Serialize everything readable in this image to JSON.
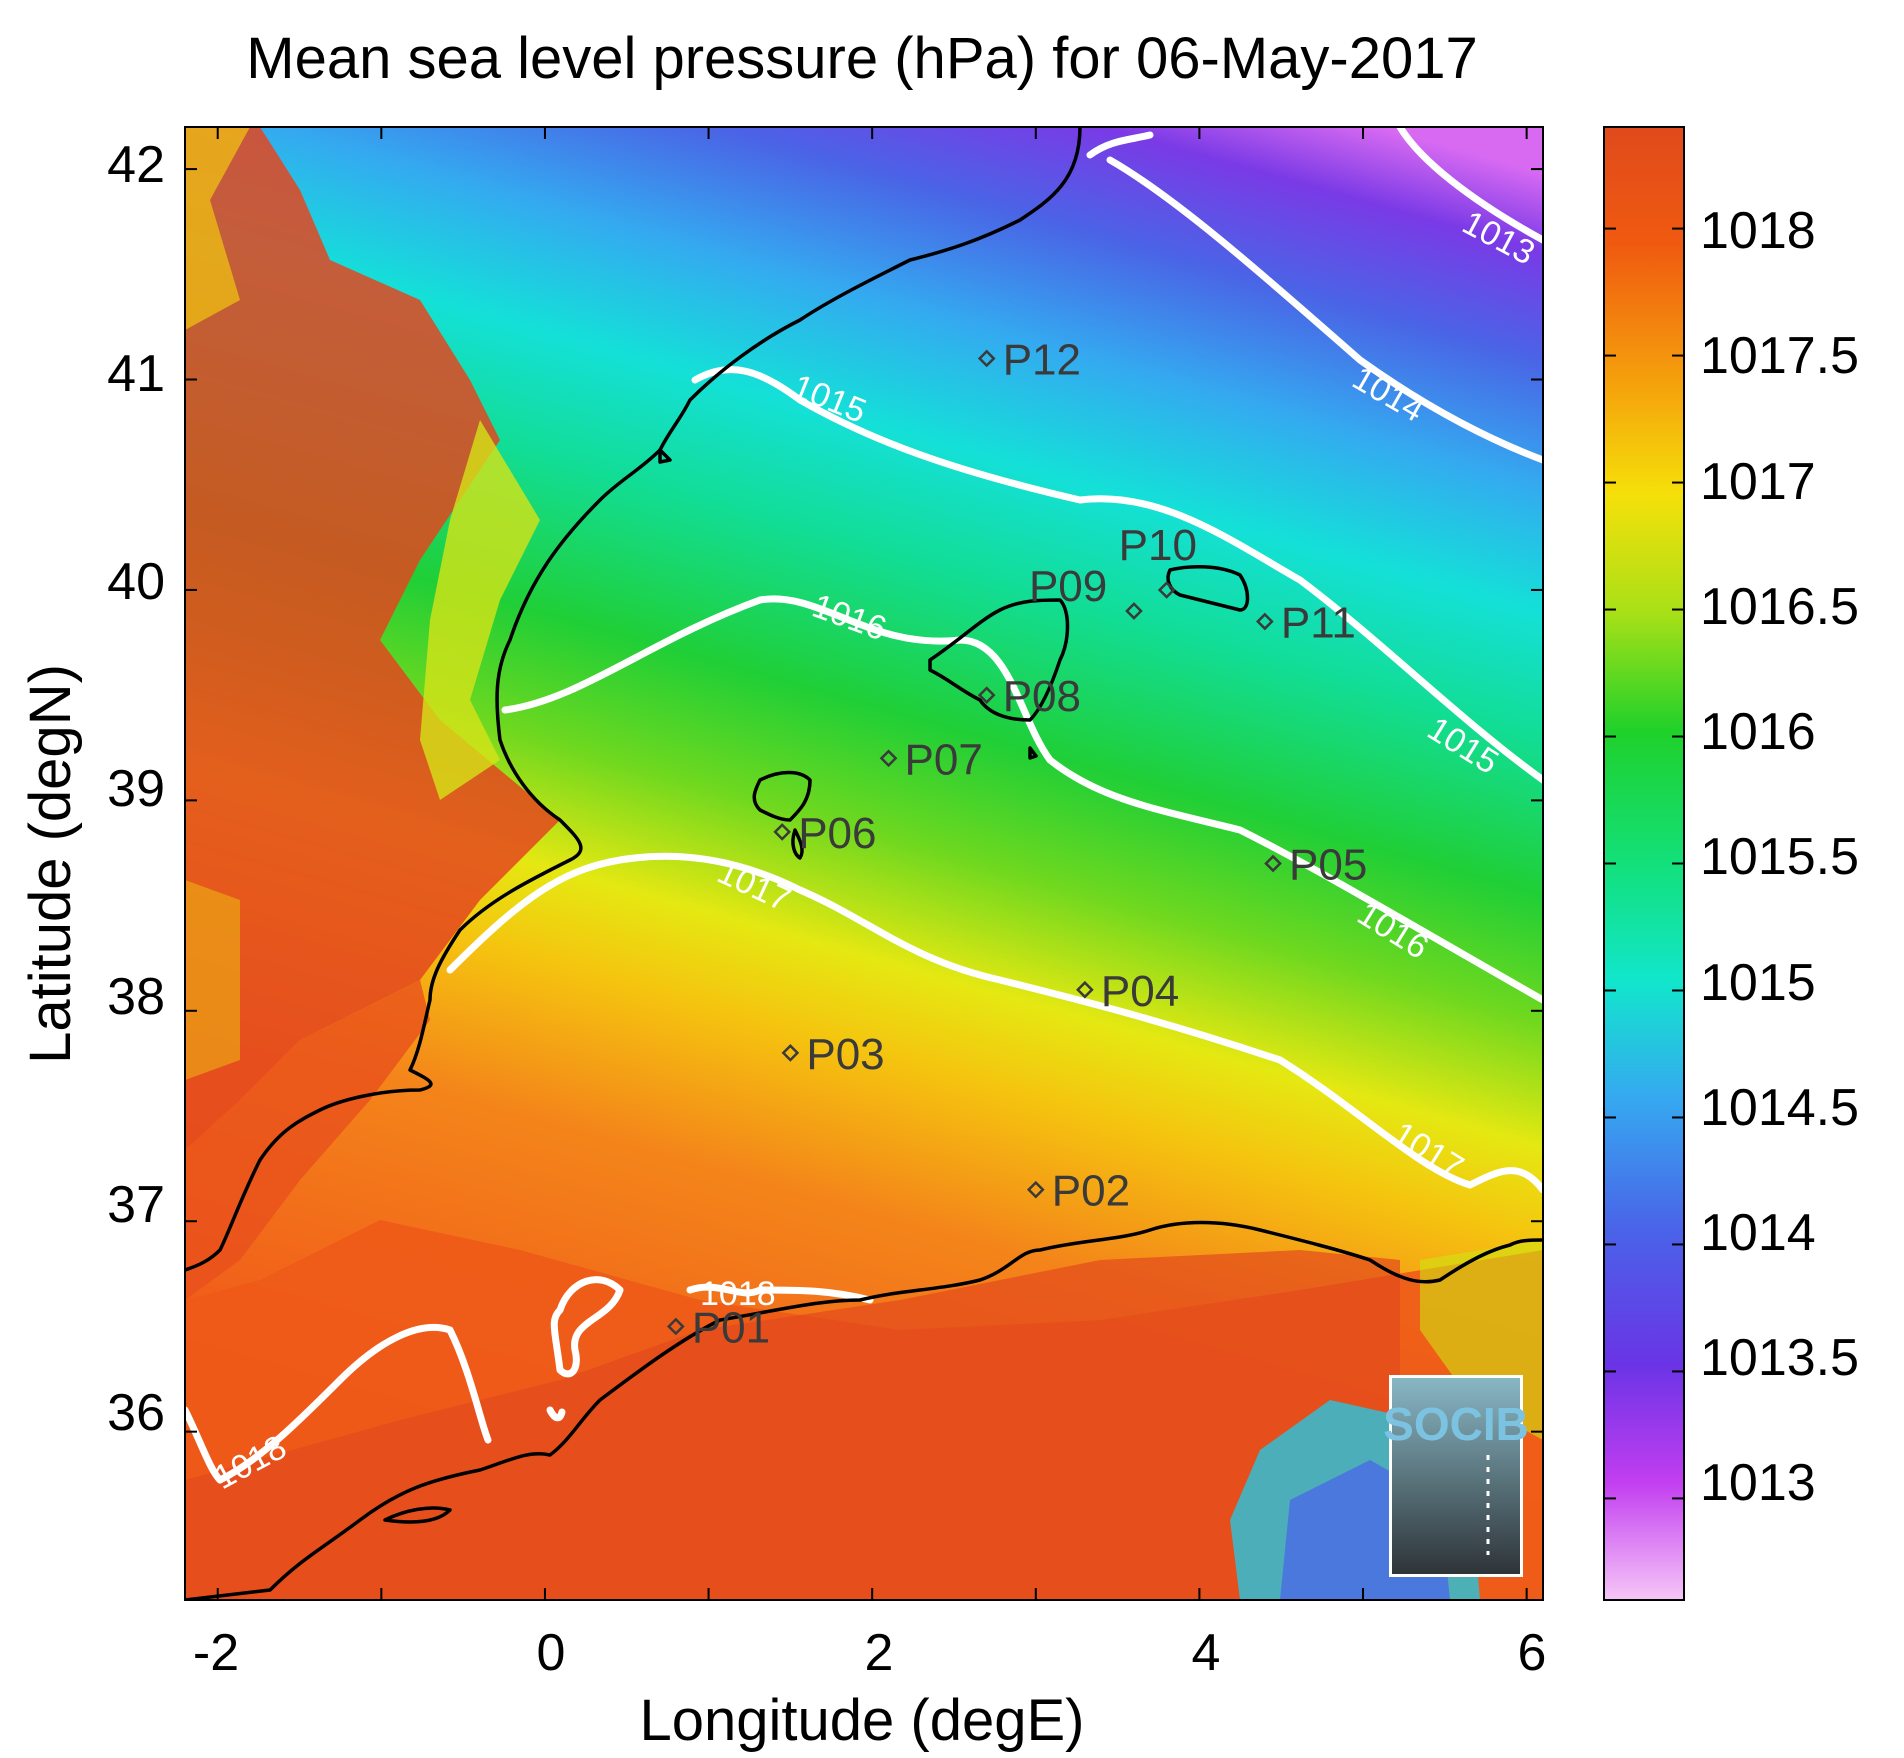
{
  "title": "Mean sea level pressure (hPa) for 06-May-2017",
  "xlabel": "Longitude (degE)",
  "ylabel": "Latitude (degN)",
  "xticks": [
    "-2",
    "0",
    "2",
    "4",
    "6"
  ],
  "yticks": [
    "42",
    "41",
    "40",
    "39",
    "38",
    "37",
    "36"
  ],
  "colorbar": {
    "ticks": [
      "1018",
      "1017.5",
      "1017",
      "1016.5",
      "1016",
      "1015.5",
      "1015",
      "1014.5",
      "1014",
      "1013.5",
      "1013"
    ],
    "colors": {
      "high": "#e04a1c",
      "mid_high": "#f5d80a",
      "mid": "#1dd32a",
      "mid_low": "#11e6cc",
      "low": "#5a2ce0",
      "lowest": "#f0b0f5"
    }
  },
  "contour_labels": [
    "1013",
    "1014",
    "1015",
    "1015",
    "1016",
    "1016",
    "1017",
    "1017",
    "1018",
    "1018"
  ],
  "points": [
    "P01",
    "P02",
    "P03",
    "P04",
    "P05",
    "P06",
    "P07",
    "P08",
    "P09",
    "P10",
    "P11",
    "P12"
  ],
  "logo": {
    "text": "SOCIB",
    "icon": "socib-logo-icon"
  },
  "chart_data": {
    "type": "heatmap",
    "title": "Mean sea level pressure (hPa) for 06-May-2017",
    "xlabel": "Longitude (degE)",
    "ylabel": "Latitude (degN)",
    "xlim": [
      -2.2,
      6.1
    ],
    "ylim": [
      35.2,
      42.2
    ],
    "colorbar_range": [
      1012.6,
      1018.4
    ],
    "contour_levels": [
      1013,
      1014,
      1015,
      1016,
      1017,
      1018
    ],
    "stations": [
      {
        "name": "P01",
        "lon": 0.8,
        "lat": 36.5
      },
      {
        "name": "P02",
        "lon": 3.0,
        "lat": 37.15
      },
      {
        "name": "P03",
        "lon": 1.5,
        "lat": 37.8
      },
      {
        "name": "P04",
        "lon": 3.3,
        "lat": 38.1
      },
      {
        "name": "P05",
        "lon": 4.45,
        "lat": 38.7
      },
      {
        "name": "P06",
        "lon": 1.45,
        "lat": 38.85
      },
      {
        "name": "P07",
        "lon": 2.1,
        "lat": 39.2
      },
      {
        "name": "P08",
        "lon": 2.7,
        "lat": 39.5
      },
      {
        "name": "P09",
        "lon": 3.6,
        "lat": 39.9
      },
      {
        "name": "P10",
        "lon": 3.8,
        "lat": 40.0
      },
      {
        "name": "P11",
        "lon": 4.4,
        "lat": 39.85
      },
      {
        "name": "P12",
        "lon": 2.7,
        "lat": 41.1
      }
    ]
  }
}
